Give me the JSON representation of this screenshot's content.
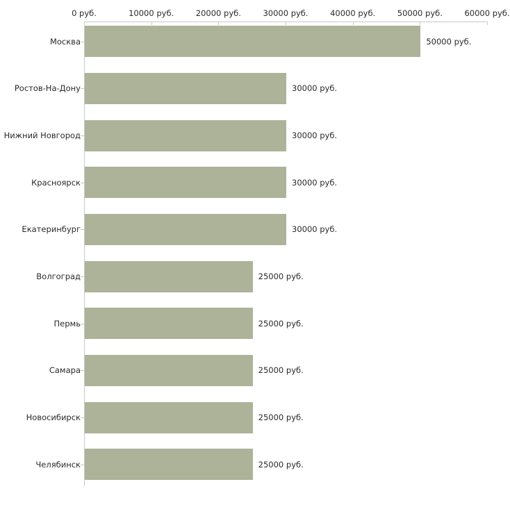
{
  "chart_data": {
    "type": "bar",
    "orientation": "horizontal",
    "title": "",
    "xlabel": "",
    "ylabel": "",
    "unit": "руб.",
    "xlim": [
      0,
      60000
    ],
    "grid": false,
    "legend": "none",
    "categories": [
      "Москва",
      "Ростов-На-Дону",
      "Нижний Новгород",
      "Красноярск",
      "Екатеринбург",
      "Волгоград",
      "Пермь",
      "Самара",
      "Новосибирск",
      "Челябинск"
    ],
    "values": [
      50000,
      30000,
      30000,
      30000,
      30000,
      25000,
      25000,
      25000,
      25000,
      25000
    ],
    "value_labels": [
      "50000 руб.",
      "30000 руб.",
      "30000 руб.",
      "30000 руб.",
      "30000 руб.",
      "25000 руб.",
      "25000 руб.",
      "25000 руб.",
      "25000 руб.",
      "25000 руб."
    ],
    "x_ticks": [
      {
        "value": 0,
        "label": "0 руб."
      },
      {
        "value": 10000,
        "label": "10000 руб."
      },
      {
        "value": 20000,
        "label": "20000 руб."
      },
      {
        "value": 30000,
        "label": "30000 руб."
      },
      {
        "value": 40000,
        "label": "40000 руб."
      },
      {
        "value": 50000,
        "label": "50000 руб."
      },
      {
        "value": 60000,
        "label": "60000 руб."
      }
    ],
    "colors": {
      "bar": "#acb399",
      "axis_line": "#c8c8c8",
      "x_tick_mark": "#cdd1ab",
      "category_tick_mark": "#c2c5ad",
      "text": "#2a2a2a",
      "background": "#ffffff"
    }
  }
}
